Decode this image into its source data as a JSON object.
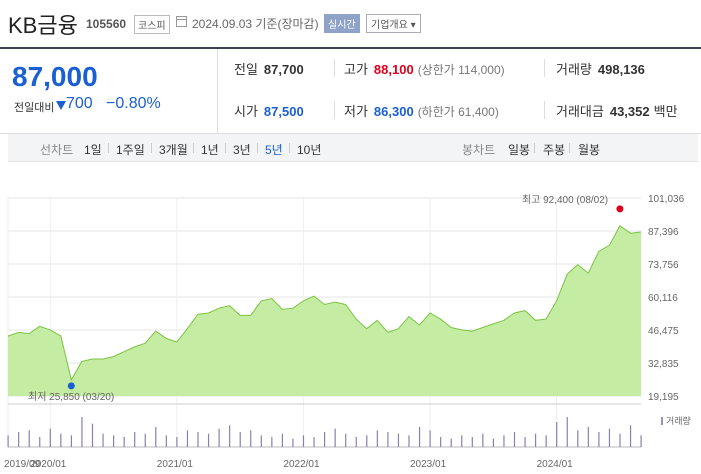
{
  "header": {
    "name": "KB금융",
    "code": "105560",
    "market": "코스피",
    "date_text": "2024.09.03 기준(장마감)",
    "realtime_label": "실시간",
    "company_label": "기업개요 ▾"
  },
  "price": {
    "current": "87,000",
    "change_label": "전일대비",
    "change_value": "700",
    "change_pct": "−0.80%",
    "color": "#1a5fd3"
  },
  "stats": {
    "prev_close": {
      "label": "전일",
      "value": "87,700"
    },
    "high": {
      "label": "고가",
      "value": "88,100",
      "sub": "(상한가 114,000)"
    },
    "volume": {
      "label": "거래량",
      "value": "498,136"
    },
    "open": {
      "label": "시가",
      "value": "87,500"
    },
    "low": {
      "label": "저가",
      "value": "86,300",
      "sub": "(하한가 61,400)"
    },
    "amount": {
      "label": "거래대금",
      "value": "43,352",
      "unit": "백만"
    }
  },
  "period_bar": {
    "line_label": "선차트",
    "line_periods": [
      "1일",
      "1주일",
      "3개월",
      "1년",
      "3년",
      "5년",
      "10년"
    ],
    "active_period": "5년",
    "candle_label": "봉차트",
    "candle_periods": [
      "일봉",
      "주봉",
      "월봉"
    ]
  },
  "chart_data": {
    "type": "area",
    "y_ticks": [
      "101,036",
      "87,396",
      "73,756",
      "60,116",
      "46,475",
      "32,835",
      "19,195"
    ],
    "ylim": [
      19195,
      101036
    ],
    "x_ticks": [
      "2019/09",
      "2020/01",
      "2021/01",
      "2022/01",
      "2023/01",
      "2024/01"
    ],
    "high_annotation": "최고 92,400 (08/02)",
    "low_annotation": "최저 25,850 (03/20)",
    "high_value": 92400,
    "low_value": 25850,
    "volume_legend": "거래량",
    "series": [
      {
        "x": "2019-09",
        "y": 44000
      },
      {
        "x": "2019-10",
        "y": 45500
      },
      {
        "x": "2019-11",
        "y": 45000
      },
      {
        "x": "2019-12",
        "y": 48000
      },
      {
        "x": "2020-01",
        "y": 46500
      },
      {
        "x": "2020-02",
        "y": 44000
      },
      {
        "x": "2020-03",
        "y": 25850
      },
      {
        "x": "2020-04",
        "y": 33500
      },
      {
        "x": "2020-05",
        "y": 34500
      },
      {
        "x": "2020-06",
        "y": 34500
      },
      {
        "x": "2020-07",
        "y": 35500
      },
      {
        "x": "2020-08",
        "y": 37500
      },
      {
        "x": "2020-09",
        "y": 39500
      },
      {
        "x": "2020-10",
        "y": 41000
      },
      {
        "x": "2020-11",
        "y": 46000
      },
      {
        "x": "2020-12",
        "y": 43000
      },
      {
        "x": "2021-01",
        "y": 41500
      },
      {
        "x": "2021-02",
        "y": 47000
      },
      {
        "x": "2021-03",
        "y": 53000
      },
      {
        "x": "2021-04",
        "y": 53500
      },
      {
        "x": "2021-05",
        "y": 55500
      },
      {
        "x": "2021-06",
        "y": 56500
      },
      {
        "x": "2021-07",
        "y": 52500
      },
      {
        "x": "2021-08",
        "y": 52500
      },
      {
        "x": "2021-09",
        "y": 58500
      },
      {
        "x": "2021-10",
        "y": 59500
      },
      {
        "x": "2021-11",
        "y": 55000
      },
      {
        "x": "2021-12",
        "y": 55500
      },
      {
        "x": "2022-01",
        "y": 58500
      },
      {
        "x": "2022-02",
        "y": 60500
      },
      {
        "x": "2022-03",
        "y": 57000
      },
      {
        "x": "2022-04",
        "y": 58000
      },
      {
        "x": "2022-05",
        "y": 57000
      },
      {
        "x": "2022-06",
        "y": 51000
      },
      {
        "x": "2022-07",
        "y": 47000
      },
      {
        "x": "2022-08",
        "y": 50500
      },
      {
        "x": "2022-09",
        "y": 45500
      },
      {
        "x": "2022-10",
        "y": 47000
      },
      {
        "x": "2022-11",
        "y": 52000
      },
      {
        "x": "2022-12",
        "y": 48500
      },
      {
        "x": "2023-01",
        "y": 53500
      },
      {
        "x": "2023-02",
        "y": 51000
      },
      {
        "x": "2023-03",
        "y": 47500
      },
      {
        "x": "2023-04",
        "y": 46500
      },
      {
        "x": "2023-05",
        "y": 46000
      },
      {
        "x": "2023-06",
        "y": 47500
      },
      {
        "x": "2023-07",
        "y": 49000
      },
      {
        "x": "2023-08",
        "y": 50500
      },
      {
        "x": "2023-09",
        "y": 53500
      },
      {
        "x": "2023-10",
        "y": 54500
      },
      {
        "x": "2023-11",
        "y": 50500
      },
      {
        "x": "2023-12",
        "y": 51000
      },
      {
        "x": "2024-01",
        "y": 58500
      },
      {
        "x": "2024-02",
        "y": 69500
      },
      {
        "x": "2024-03",
        "y": 73500
      },
      {
        "x": "2024-04",
        "y": 70000
      },
      {
        "x": "2024-05",
        "y": 79000
      },
      {
        "x": "2024-06",
        "y": 81500
      },
      {
        "x": "2024-07",
        "y": 89500
      },
      {
        "x": "2024-08",
        "y": 86500
      },
      {
        "x": "2024-09",
        "y": 87000
      }
    ],
    "volume": [
      7,
      9,
      10,
      6,
      11,
      8,
      7,
      18,
      14,
      8,
      7,
      6,
      9,
      8,
      12,
      7,
      6,
      10,
      9,
      8,
      11,
      13,
      9,
      10,
      7,
      6,
      8,
      5,
      7,
      6,
      9,
      11,
      8,
      6,
      7,
      10,
      9,
      8,
      7,
      12,
      10,
      6,
      5,
      7,
      6,
      8,
      5,
      7,
      9,
      6,
      8,
      7,
      15,
      18,
      10,
      12,
      9,
      11,
      8,
      13,
      7
    ],
    "area_color": "#c4eca2",
    "line_color": "#7cc444",
    "high_color": "#e0001a",
    "low_color": "#1a5fd3"
  }
}
